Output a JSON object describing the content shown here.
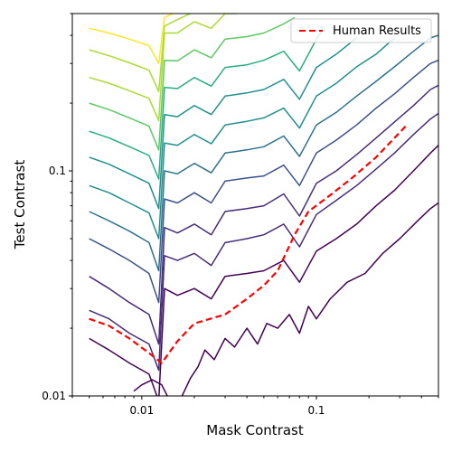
{
  "chart_data": {
    "type": "line",
    "xlabel": "Mask Contrast",
    "ylabel": "Test Contrast",
    "x_scale": "log",
    "y_scale": "log",
    "xlim": [
      0.004,
      0.5
    ],
    "ylim": [
      0.01,
      0.5
    ],
    "x_ticks": [
      {
        "value": 0.01,
        "label": "0.01"
      },
      {
        "value": 0.1,
        "label": "0.1"
      }
    ],
    "y_ticks": [
      {
        "value": 0.01,
        "label": "0.01"
      },
      {
        "value": 0.1,
        "label": "0.1"
      }
    ],
    "legend_position": "top-right",
    "series": [
      {
        "name": "Human Results",
        "color": "#ff0000",
        "style": "dashed",
        "x": [
          0.005,
          0.0065,
          0.0085,
          0.011,
          0.013,
          0.016,
          0.02,
          0.03,
          0.04,
          0.05,
          0.06,
          0.075,
          0.09,
          0.12,
          0.16,
          0.22,
          0.33
        ],
        "y": [
          0.022,
          0.0205,
          0.018,
          0.0155,
          0.014,
          0.0175,
          0.021,
          0.023,
          0.027,
          0.031,
          0.036,
          0.052,
          0.066,
          0.078,
          0.093,
          0.115,
          0.16
        ]
      }
    ],
    "contour_colors": [
      "#440154",
      "#472c7a",
      "#3b518b",
      "#2c718e",
      "#21908d",
      "#27ad81",
      "#5cc863",
      "#aadc32",
      "#fde725"
    ],
    "contour_levels": [
      {
        "x": [
          0.005,
          0.0065,
          0.0085,
          0.011,
          0.0125,
          0.0135,
          0.016,
          0.02,
          0.025,
          0.03,
          0.04,
          0.05,
          0.065,
          0.08,
          0.1,
          0.13,
          0.17,
          0.22,
          0.28,
          0.36,
          0.45,
          0.5
        ],
        "y": [
          0.018,
          0.016,
          0.014,
          0.0125,
          0.0095,
          0.03,
          0.028,
          0.03,
          0.027,
          0.034,
          0.035,
          0.036,
          0.04,
          0.032,
          0.044,
          0.05,
          0.058,
          0.07,
          0.082,
          0.1,
          0.12,
          0.13
        ]
      },
      {
        "x": [
          0.005,
          0.0065,
          0.0085,
          0.011,
          0.0125,
          0.0135,
          0.016,
          0.02,
          0.025,
          0.03,
          0.04,
          0.05,
          0.065,
          0.08,
          0.1,
          0.13,
          0.17,
          0.22,
          0.28,
          0.36,
          0.45,
          0.5
        ],
        "y": [
          0.024,
          0.022,
          0.019,
          0.017,
          0.013,
          0.042,
          0.04,
          0.043,
          0.038,
          0.048,
          0.05,
          0.052,
          0.058,
          0.046,
          0.064,
          0.074,
          0.086,
          0.102,
          0.12,
          0.145,
          0.17,
          0.18
        ]
      },
      {
        "x": [
          0.005,
          0.0065,
          0.0085,
          0.011,
          0.0125,
          0.0135,
          0.016,
          0.02,
          0.025,
          0.03,
          0.04,
          0.05,
          0.065,
          0.08,
          0.1,
          0.13,
          0.17,
          0.22,
          0.28,
          0.36,
          0.45,
          0.5
        ],
        "y": [
          0.034,
          0.03,
          0.026,
          0.023,
          0.017,
          0.056,
          0.053,
          0.058,
          0.052,
          0.066,
          0.068,
          0.07,
          0.079,
          0.063,
          0.088,
          0.1,
          0.118,
          0.14,
          0.165,
          0.195,
          0.23,
          0.24
        ]
      },
      {
        "x": [
          0.005,
          0.0065,
          0.0085,
          0.011,
          0.0125,
          0.0135,
          0.016,
          0.02,
          0.025,
          0.03,
          0.04,
          0.05,
          0.065,
          0.08,
          0.1,
          0.13,
          0.17,
          0.22,
          0.28,
          0.36,
          0.45,
          0.5
        ],
        "y": [
          0.05,
          0.045,
          0.04,
          0.035,
          0.026,
          0.075,
          0.072,
          0.08,
          0.072,
          0.09,
          0.093,
          0.095,
          0.106,
          0.086,
          0.12,
          0.137,
          0.16,
          0.19,
          0.22,
          0.26,
          0.3,
          0.31
        ]
      },
      {
        "x": [
          0.005,
          0.0065,
          0.0085,
          0.011,
          0.0125,
          0.0135,
          0.016,
          0.02,
          0.025,
          0.03,
          0.04,
          0.05,
          0.065,
          0.08,
          0.1,
          0.13,
          0.17,
          0.22,
          0.28,
          0.36,
          0.45,
          0.5
        ],
        "y": [
          0.066,
          0.06,
          0.054,
          0.048,
          0.036,
          0.1,
          0.097,
          0.108,
          0.098,
          0.12,
          0.124,
          0.128,
          0.143,
          0.116,
          0.16,
          0.182,
          0.215,
          0.25,
          0.29,
          0.34,
          0.39,
          0.4
        ]
      },
      {
        "x": [
          0.005,
          0.0065,
          0.0085,
          0.011,
          0.0125,
          0.0135,
          0.016,
          0.02,
          0.025,
          0.03,
          0.04,
          0.05,
          0.065,
          0.08,
          0.1,
          0.13,
          0.17,
          0.22,
          0.28
        ],
        "y": [
          0.086,
          0.08,
          0.072,
          0.065,
          0.05,
          0.133,
          0.13,
          0.145,
          0.132,
          0.16,
          0.166,
          0.172,
          0.19,
          0.155,
          0.215,
          0.245,
          0.29,
          0.33,
          0.39
        ]
      },
      {
        "x": [
          0.005,
          0.0065,
          0.0085,
          0.011,
          0.0125,
          0.0135,
          0.016,
          0.02,
          0.025,
          0.03,
          0.04,
          0.05,
          0.065,
          0.08,
          0.1,
          0.13,
          0.17
        ],
        "y": [
          0.115,
          0.107,
          0.097,
          0.088,
          0.068,
          0.178,
          0.174,
          0.195,
          0.178,
          0.215,
          0.222,
          0.23,
          0.255,
          0.208,
          0.288,
          0.33,
          0.39
        ]
      },
      {
        "x": [
          0.005,
          0.0065,
          0.0085,
          0.011,
          0.0125,
          0.0135,
          0.016,
          0.02,
          0.025,
          0.03,
          0.04,
          0.05,
          0.065,
          0.08,
          0.1,
          0.11
        ],
        "y": [
          0.15,
          0.14,
          0.128,
          0.117,
          0.092,
          0.235,
          0.232,
          0.26,
          0.238,
          0.288,
          0.296,
          0.31,
          0.34,
          0.278,
          0.385,
          0.43
        ]
      },
      {
        "x": [
          0.005,
          0.0065,
          0.0085,
          0.011,
          0.0125,
          0.0135,
          0.016,
          0.02,
          0.025,
          0.03,
          0.04,
          0.05,
          0.065,
          0.075
        ],
        "y": [
          0.2,
          0.187,
          0.172,
          0.158,
          0.124,
          0.31,
          0.308,
          0.345,
          0.318,
          0.385,
          0.395,
          0.41,
          0.45,
          0.48
        ]
      },
      {
        "x": [
          0.005,
          0.0065,
          0.0085,
          0.011,
          0.0125,
          0.0135,
          0.016,
          0.02,
          0.025,
          0.03,
          0.035
        ],
        "y": [
          0.26,
          0.245,
          0.227,
          0.21,
          0.167,
          0.41,
          0.41,
          0.46,
          0.43,
          0.5,
          0.5
        ]
      },
      {
        "x": [
          0.005,
          0.0065,
          0.0085,
          0.011,
          0.0125,
          0.0135,
          0.016,
          0.019
        ],
        "y": [
          0.345,
          0.325,
          0.302,
          0.28,
          0.225,
          0.44,
          0.47,
          0.5
        ]
      },
      {
        "x": [
          0.005,
          0.0065,
          0.0085,
          0.011,
          0.0125,
          0.0135,
          0.015
        ],
        "y": [
          0.43,
          0.41,
          0.385,
          0.36,
          0.3,
          0.48,
          0.5
        ]
      }
    ],
    "low_contours": [
      {
        "x": [
          0.009,
          0.01,
          0.0115,
          0.013,
          0.014
        ],
        "y": [
          0.0105,
          0.0112,
          0.0118,
          0.0112,
          0.01
        ]
      },
      {
        "x": [
          0.017,
          0.019,
          0.021,
          0.023,
          0.026,
          0.03,
          0.034,
          0.04,
          0.046,
          0.052,
          0.06,
          0.07,
          0.08,
          0.09,
          0.1,
          0.12,
          0.15,
          0.19,
          0.24,
          0.3,
          0.38,
          0.45,
          0.5
        ],
        "y": [
          0.01,
          0.012,
          0.0135,
          0.016,
          0.0145,
          0.018,
          0.0165,
          0.02,
          0.017,
          0.021,
          0.02,
          0.023,
          0.019,
          0.025,
          0.022,
          0.027,
          0.032,
          0.035,
          0.043,
          0.05,
          0.06,
          0.068,
          0.072
        ]
      }
    ]
  }
}
